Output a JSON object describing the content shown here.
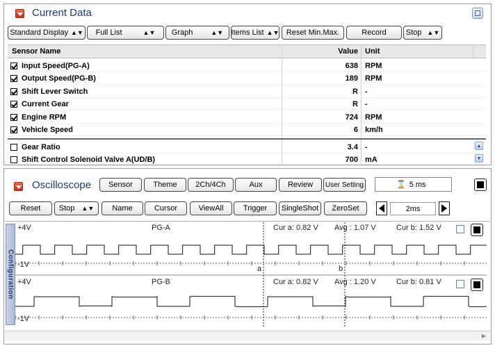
{
  "current_data": {
    "title": "Current Data",
    "toolbar": [
      {
        "label": "Standard Display",
        "spin": true
      },
      {
        "label": "Full List",
        "spin": true
      },
      {
        "label": "Graph",
        "spin": true
      },
      {
        "label": "Items List",
        "spin": true
      },
      {
        "label": "Reset Min.Max.",
        "spin": false
      },
      {
        "label": "Record",
        "spin": false
      },
      {
        "label": "Stop",
        "spin": true
      }
    ],
    "columns": {
      "name": "Sensor Name",
      "value": "Value",
      "unit": "Unit"
    },
    "rows": [
      {
        "checked": true,
        "name": "Input Speed(PG-A)",
        "value": "638",
        "unit": "RPM"
      },
      {
        "checked": true,
        "name": "Output Speed(PG-B)",
        "value": "189",
        "unit": "RPM"
      },
      {
        "checked": true,
        "name": "Shift Lever Switch",
        "value": "R",
        "unit": "-"
      },
      {
        "checked": true,
        "name": "Current Gear",
        "value": "R",
        "unit": "-"
      },
      {
        "checked": true,
        "name": "Engine RPM",
        "value": "724",
        "unit": "RPM"
      },
      {
        "checked": true,
        "name": "Vehicle Speed",
        "value": "6",
        "unit": "km/h"
      },
      {
        "checked": false,
        "name": "Gear Ratio",
        "value": "3.4",
        "unit": "-"
      },
      {
        "checked": false,
        "name": "Shift Control Solenoid Valve A(UD/B)",
        "value": "700",
        "unit": "mA"
      }
    ]
  },
  "oscilloscope": {
    "title": "Oscilloscope",
    "buttons_top": [
      "Sensor",
      "Theme",
      "2Ch/4Ch",
      "Aux",
      "Review",
      "User Setting"
    ],
    "timebase": "5 ms",
    "buttons_bottom": [
      {
        "label": "Reset",
        "spin": false
      },
      {
        "label": "Stop",
        "spin": true
      },
      {
        "label": "Name",
        "spin": false
      },
      {
        "label": "Cursor",
        "spin": false
      },
      {
        "label": "ViewAll",
        "spin": false
      },
      {
        "label": "Trigger",
        "spin": false
      },
      {
        "label": "SingleShot",
        "spin": false
      },
      {
        "label": "ZeroSet",
        "spin": false
      }
    ],
    "time_div": "2ms",
    "side_tab": "Configuration",
    "cursor_a_label": "a",
    "cursor_b_label": "b",
    "channels": [
      {
        "name": "PG-A",
        "vmax": "+4V",
        "vmin": "-1V",
        "cur_a": "Cur a: 0.82 V",
        "avg": "Avg : 1.07 V",
        "cur_b": "Cur b: 1.52 V"
      },
      {
        "name": "PG-B",
        "vmax": "+4V",
        "vmin": "-1V",
        "cur_a": "Cur a: 0.82 V",
        "avg": "Avg : 1.20 V",
        "cur_b": "Cur b: 0.81 V"
      }
    ]
  },
  "colors": {
    "title": "#1a3a78",
    "accent_red": "#d2381e",
    "trace": "#111111"
  },
  "icons": {
    "timebase_icon": "hourglass-icon",
    "prev": "triangle-left-icon",
    "next": "triangle-right-icon"
  }
}
